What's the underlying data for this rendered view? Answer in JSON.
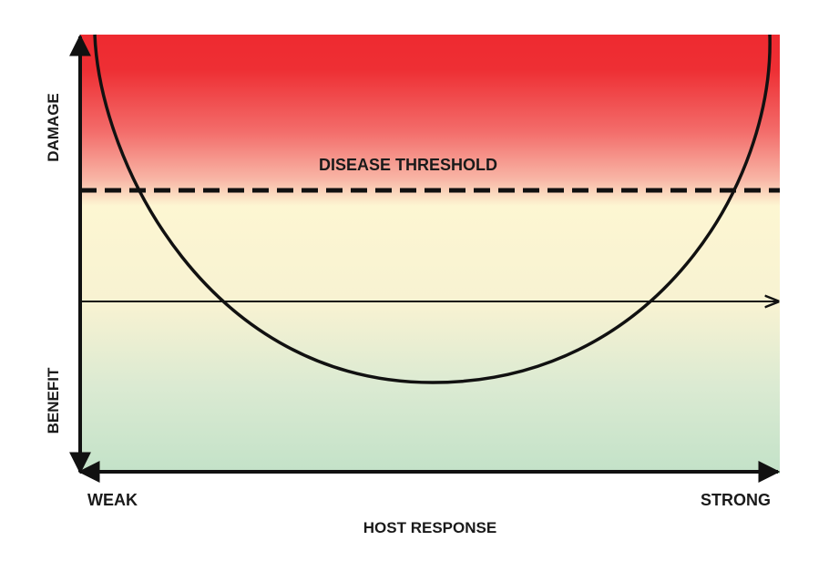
{
  "diagram": {
    "y_axis_top_label": "DAMAGE",
    "y_axis_bottom_label": "BENEFIT",
    "threshold_label": "DISEASE THRESHOLD",
    "x_axis_left_label": "WEAK",
    "x_axis_right_label": "STRONG",
    "x_axis_title": "HOST RESPONSE",
    "colors": {
      "damage_zone": "#ee2a30",
      "neutral_zone": "#fdf6d2",
      "benefit_zone": "#c3e2c8",
      "curve": "#111111",
      "axes": "#111111"
    }
  }
}
